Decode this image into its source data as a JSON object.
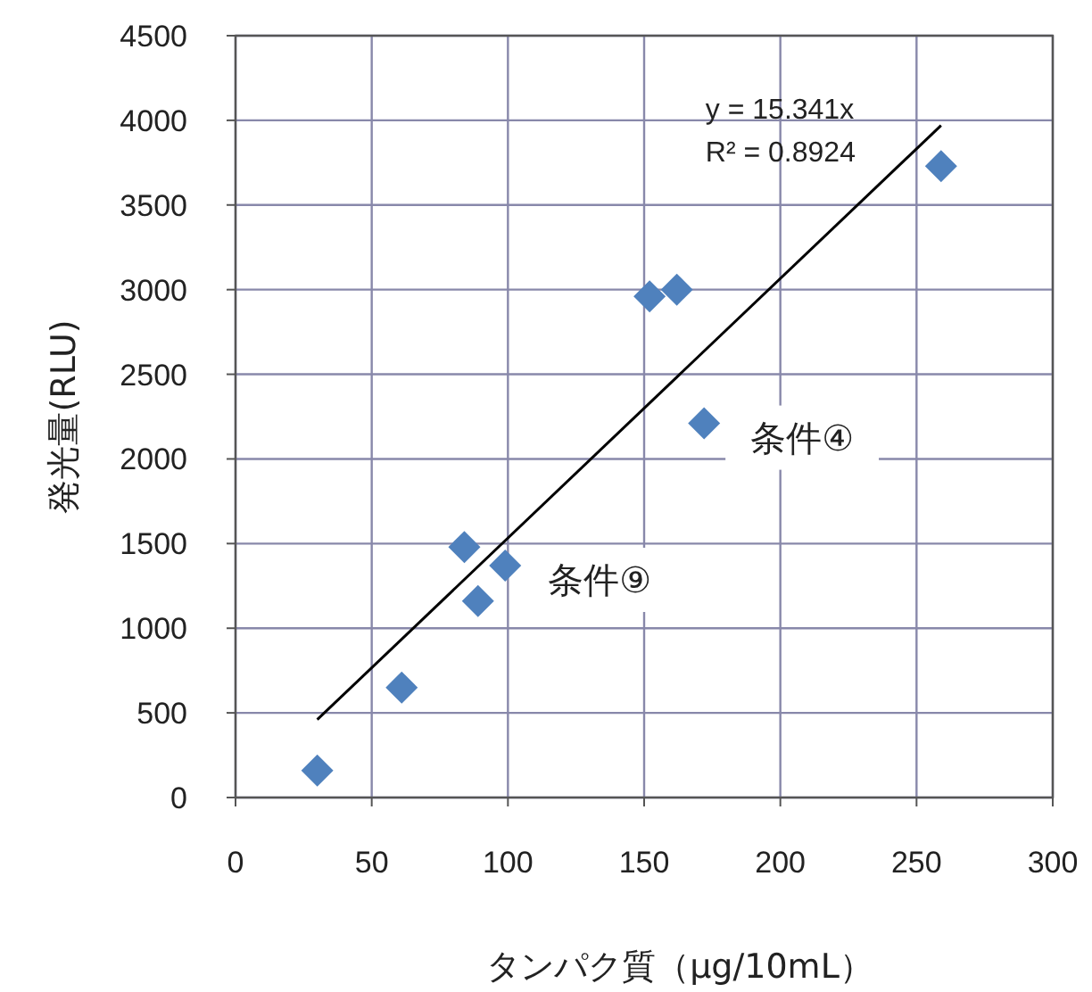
{
  "chart_data": {
    "type": "scatter",
    "xlabel": "タンパク質（μg/10mL）",
    "ylabel": "発光量(RLU)",
    "xlim": [
      0,
      300
    ],
    "xticks": [
      0,
      50,
      100,
      150,
      200,
      250,
      300
    ],
    "ylim": [
      0,
      4500
    ],
    "yticks": [
      0,
      500,
      1000,
      1500,
      2000,
      2500,
      3000,
      3500,
      4000,
      4500
    ],
    "grid": true,
    "marker": "diamond",
    "series": [
      {
        "color": "#4f81bd",
        "x": [
          30,
          61,
          84,
          89,
          99,
          152,
          162,
          172,
          259
        ],
        "values": [
          160,
          650,
          1480,
          1160,
          1370,
          2960,
          3000,
          2210,
          3730
        ]
      },
      {
        "type": "line",
        "color": "#000000",
        "x": [
          30,
          259
        ],
        "values": [
          460,
          3970
        ],
        "marker": "none"
      }
    ],
    "annotations": [
      "y = 15.341x",
      "R² = 0.8924",
      {
        "text": "条件④",
        "x": 172,
        "y": 2210
      },
      {
        "text": "条件⑨",
        "x": 99,
        "y": 1370
      }
    ]
  }
}
